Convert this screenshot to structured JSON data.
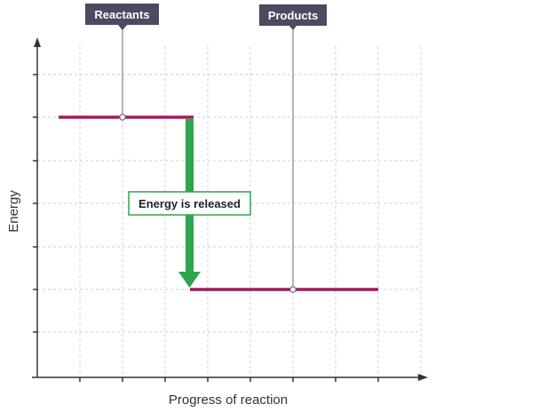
{
  "labels": {
    "reactants": "Reactants",
    "products": "Products",
    "energy_released": "Energy is released",
    "y_axis": "Energy",
    "x_axis": "Progress of reaction"
  },
  "colors": {
    "level_line": "#a01c5c",
    "arrow": "#2ea44f",
    "tag_bg": "#4a4a60",
    "grid": "#cfcfcf",
    "axis": "#333333"
  },
  "icons": {
    "y_axis_head": "arrow-up-icon",
    "x_axis_head": "arrow-right-icon",
    "release_arrow": "arrow-down-icon"
  }
}
